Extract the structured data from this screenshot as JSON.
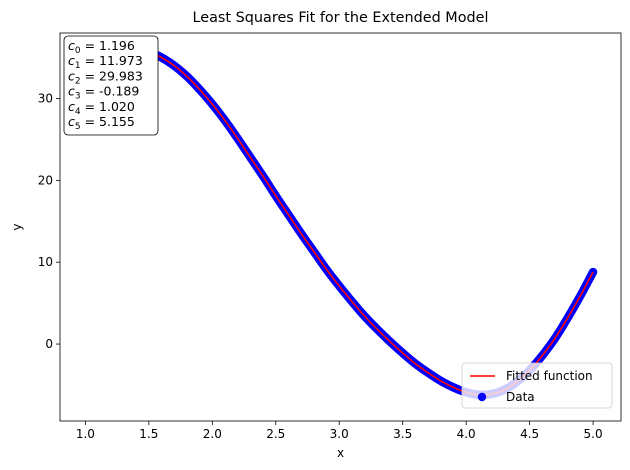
{
  "chart_data": {
    "type": "line",
    "title": "Least Squares Fit for the Extended Model",
    "xlabel": "x",
    "ylabel": "y",
    "xlim": [
      0.8,
      5.22
    ],
    "ylim": [
      -9.4,
      38.0
    ],
    "xticks": [
      1.0,
      1.5,
      2.0,
      2.5,
      3.0,
      3.5,
      4.0,
      4.5,
      5.0
    ],
    "xtick_labels": [
      "1.0",
      "1.5",
      "2.0",
      "2.5",
      "3.0",
      "3.5",
      "4.0",
      "4.5",
      "5.0"
    ],
    "yticks": [
      0,
      10,
      20,
      30
    ],
    "ytick_labels": [
      "0",
      "10",
      "20",
      "30"
    ],
    "grid": false,
    "legend_position": "lower right",
    "series": [
      {
        "name": "Fitted function",
        "kind": "line",
        "color": "#ff0000",
        "x": [
          1.0,
          1.1,
          1.2,
          1.3,
          1.4,
          1.5,
          1.6,
          1.7,
          1.8,
          1.9,
          2.0,
          2.1,
          2.2,
          2.3,
          2.4,
          2.5,
          2.6,
          2.7,
          2.8,
          2.9,
          3.0,
          3.1,
          3.2,
          3.3,
          3.4,
          3.5,
          3.6,
          3.7,
          3.8,
          3.9,
          4.0,
          4.1,
          4.2,
          4.3,
          4.4,
          4.5,
          4.6,
          4.7,
          4.8,
          4.9,
          5.0
        ],
        "y": [
          33.9,
          34.8,
          35.5,
          35.9,
          36.0,
          35.7,
          35.0,
          34.0,
          32.7,
          31.1,
          29.3,
          27.3,
          25.1,
          22.8,
          20.5,
          18.1,
          15.8,
          13.5,
          11.3,
          9.1,
          7.1,
          5.2,
          3.4,
          1.8,
          0.3,
          -1.1,
          -2.4,
          -3.5,
          -4.5,
          -5.3,
          -5.9,
          -6.2,
          -6.1,
          -5.6,
          -4.6,
          -3.2,
          -1.4,
          0.7,
          3.2,
          5.9,
          8.8
        ]
      },
      {
        "name": "Data",
        "kind": "scatter",
        "color": "#0000ff"
      }
    ],
    "coefficients": [
      {
        "sub": "0",
        "value": "1.196"
      },
      {
        "sub": "1",
        "value": "11.973"
      },
      {
        "sub": "2",
        "value": "29.983"
      },
      {
        "sub": "3",
        "value": "-0.189"
      },
      {
        "sub": "4",
        "value": "1.020"
      },
      {
        "sub": "5",
        "value": "5.155"
      }
    ],
    "coefficient_symbol": "c"
  }
}
